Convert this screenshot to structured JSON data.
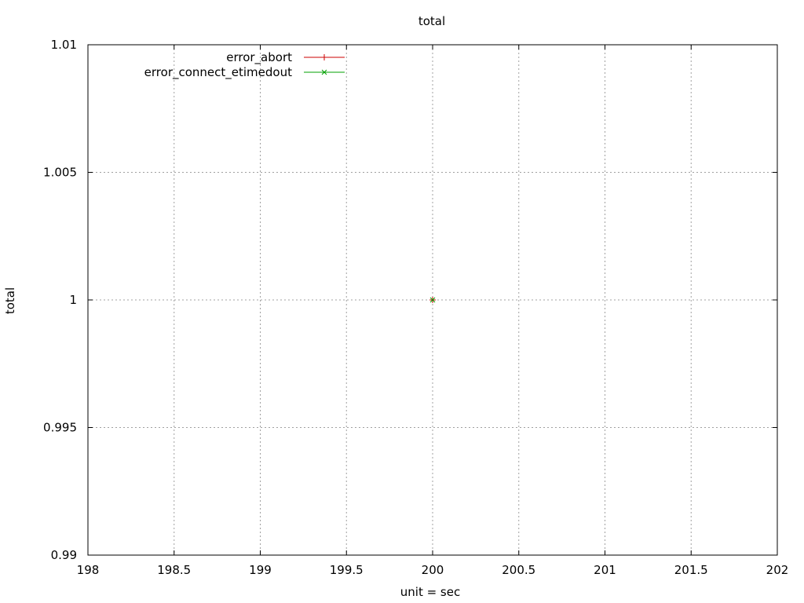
{
  "chart_data": {
    "type": "scatter",
    "title": "total",
    "xlabel": "unit = sec",
    "ylabel": "total",
    "xlim": [
      198,
      202
    ],
    "ylim": [
      0.99,
      1.01
    ],
    "xticks": [
      "198",
      "198.5",
      "199",
      "199.5",
      "200",
      "200.5",
      "201",
      "201.5",
      "202"
    ],
    "yticks": [
      "0.99",
      "0.995",
      "1",
      "1.005",
      "1.01"
    ],
    "grid": true,
    "legend_position": "top-left",
    "series": [
      {
        "name": "error_abort",
        "color": "#cc0000",
        "marker": "plus",
        "points": [
          [
            200,
            1
          ]
        ]
      },
      {
        "name": "error_connect_etimedout",
        "color": "#00a000",
        "marker": "cross",
        "points": [
          [
            200,
            1
          ]
        ]
      }
    ]
  }
}
